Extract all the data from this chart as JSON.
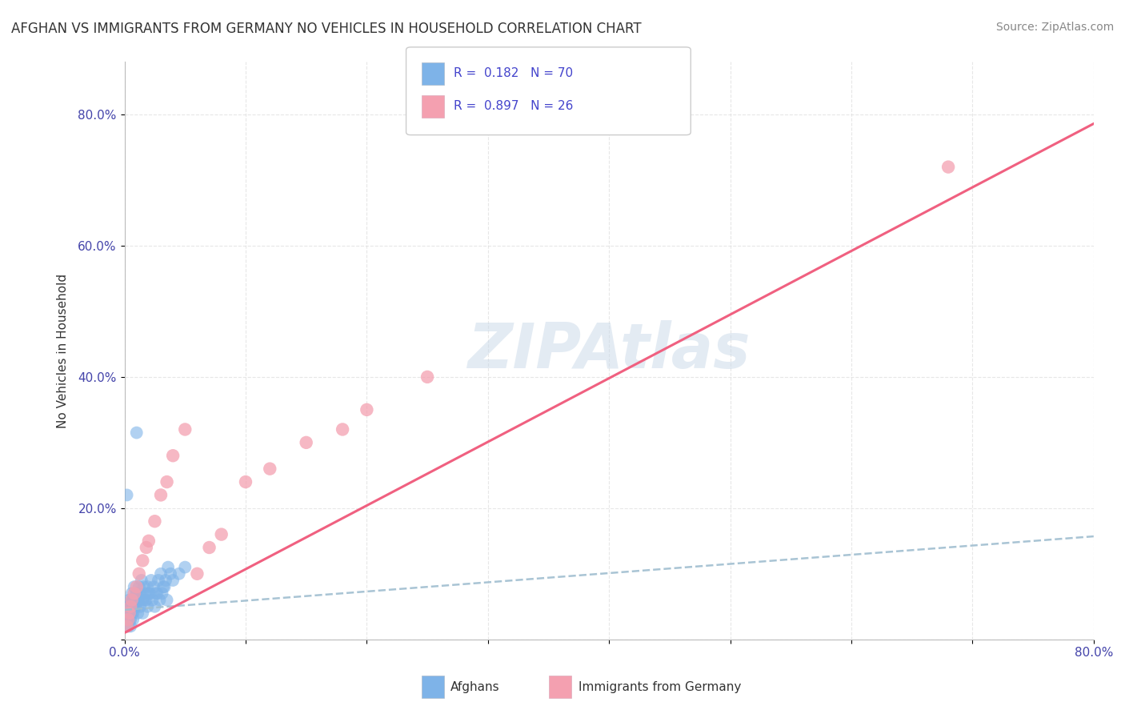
{
  "title": "AFGHAN VS IMMIGRANTS FROM GERMANY NO VEHICLES IN HOUSEHOLD CORRELATION CHART",
  "source": "Source: ZipAtlas.com",
  "ylabel": "No Vehicles in Household",
  "xlim": [
    0.0,
    0.8
  ],
  "ylim": [
    0.0,
    0.88
  ],
  "x_tick_positions": [
    0.0,
    0.1,
    0.2,
    0.3,
    0.4,
    0.5,
    0.6,
    0.7,
    0.8
  ],
  "x_tick_labels": [
    "0.0%",
    "",
    "",
    "",
    "",
    "",
    "",
    "",
    "80.0%"
  ],
  "y_tick_positions": [
    0.0,
    0.2,
    0.4,
    0.6,
    0.8
  ],
  "y_tick_labels": [
    "",
    "20.0%",
    "40.0%",
    "60.0%",
    "80.0%"
  ],
  "color_afghan": "#7EB3E8",
  "color_german": "#F4A0B0",
  "color_trendline_afghan": "#A0BED0",
  "color_trendline_german": "#F06080",
  "watermark": "ZIPAtlas",
  "slope_afghan": 0.14,
  "intercept_afghan": 0.045,
  "slope_german": 0.97,
  "intercept_german": 0.01,
  "afghans_x": [
    0.01,
    0.002,
    0.004,
    0.005,
    0.006,
    0.007,
    0.008,
    0.009,
    0.011,
    0.012,
    0.013,
    0.014,
    0.015,
    0.016,
    0.017,
    0.018,
    0.019,
    0.02,
    0.022,
    0.024,
    0.026,
    0.028,
    0.03,
    0.032,
    0.034,
    0.036,
    0.038,
    0.04,
    0.045,
    0.05,
    0.003,
    0.005,
    0.007,
    0.009,
    0.011,
    0.013,
    0.015,
    0.017,
    0.019,
    0.021,
    0.023,
    0.025,
    0.027,
    0.029,
    0.031,
    0.033,
    0.035,
    0.004,
    0.006,
    0.008,
    0.01,
    0.012,
    0.002,
    0.003,
    0.005,
    0.007,
    0.009,
    0.003,
    0.004,
    0.005,
    0.006,
    0.007,
    0.008,
    0.009,
    0.01,
    0.003,
    0.004,
    0.005,
    0.006,
    0.007
  ],
  "afghans_y": [
    0.315,
    0.22,
    0.06,
    0.05,
    0.07,
    0.06,
    0.08,
    0.05,
    0.06,
    0.08,
    0.07,
    0.09,
    0.06,
    0.08,
    0.07,
    0.06,
    0.08,
    0.07,
    0.09,
    0.08,
    0.07,
    0.09,
    0.1,
    0.08,
    0.09,
    0.11,
    0.1,
    0.09,
    0.1,
    0.11,
    0.03,
    0.04,
    0.05,
    0.06,
    0.04,
    0.05,
    0.04,
    0.06,
    0.05,
    0.07,
    0.06,
    0.05,
    0.07,
    0.06,
    0.07,
    0.08,
    0.06,
    0.05,
    0.06,
    0.05,
    0.07,
    0.06,
    0.04,
    0.05,
    0.04,
    0.05,
    0.06,
    0.03,
    0.04,
    0.03,
    0.05,
    0.04,
    0.06,
    0.05,
    0.07,
    0.02,
    0.03,
    0.02,
    0.04,
    0.03
  ],
  "german_x": [
    0.002,
    0.003,
    0.004,
    0.005,
    0.006,
    0.008,
    0.01,
    0.012,
    0.015,
    0.018,
    0.02,
    0.025,
    0.03,
    0.035,
    0.04,
    0.05,
    0.06,
    0.07,
    0.08,
    0.1,
    0.12,
    0.15,
    0.18,
    0.2,
    0.25,
    0.68
  ],
  "german_y": [
    0.02,
    0.03,
    0.04,
    0.05,
    0.06,
    0.07,
    0.08,
    0.1,
    0.12,
    0.14,
    0.15,
    0.18,
    0.22,
    0.24,
    0.28,
    0.32,
    0.1,
    0.14,
    0.16,
    0.24,
    0.26,
    0.3,
    0.32,
    0.35,
    0.4,
    0.72
  ]
}
